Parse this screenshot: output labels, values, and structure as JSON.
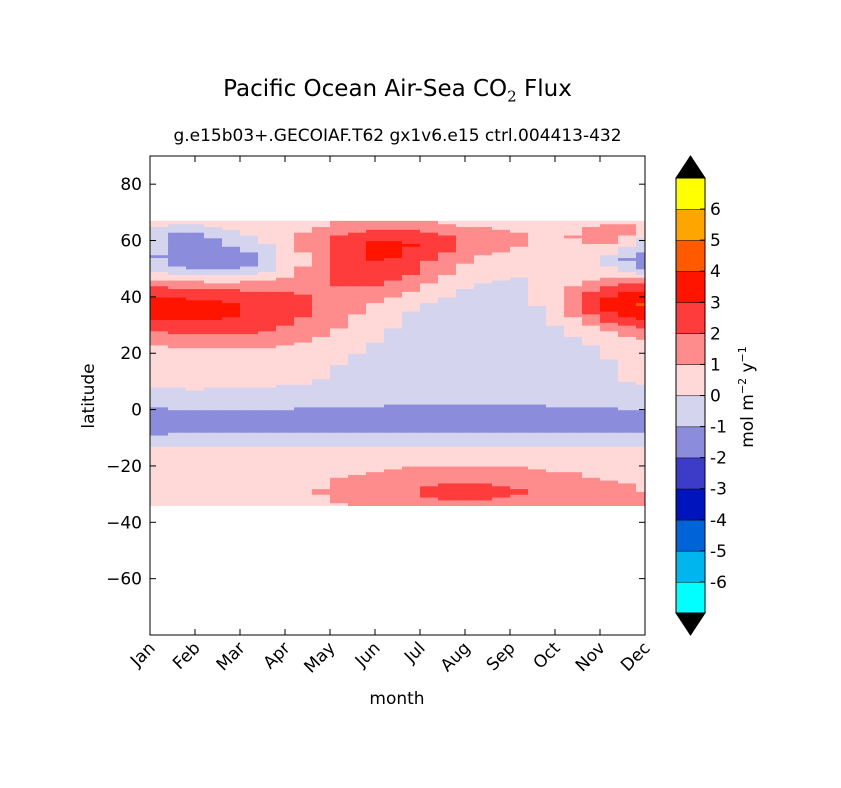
{
  "chart_data": {
    "type": "heatmap",
    "title": "Pacific Ocean Air-Sea CO",
    "title_subscript": "2",
    "title_suffix": " Flux",
    "subtitle": "g.e15b03+.GECOIAF.T62 gx1v6.e15 ctrl.004",
    "subtitle_years": "413-432",
    "xlabel": "month",
    "ylabel": "latitude",
    "x_ticks": [
      "Jan",
      "Feb",
      "Mar",
      "Apr",
      "May",
      "Jun",
      "Jul",
      "Aug",
      "Sep",
      "Oct",
      "Nov",
      "Dec"
    ],
    "y_ticks": [
      80,
      60,
      40,
      20,
      0,
      -20,
      -40,
      -60
    ],
    "y_tick_labels": [
      "80",
      "60",
      "40",
      "20",
      "0",
      "−20",
      "−40",
      "−60"
    ],
    "xlim": [
      1,
      12
    ],
    "ylim": [
      -80,
      90
    ],
    "data_lat_range": [
      -34,
      67
    ],
    "colorbar": {
      "label": "mol m",
      "label_sup1": "−2",
      "label_mid": " y",
      "label_sup2": "−1",
      "levels": [
        -7,
        -6,
        -5,
        -4,
        -3,
        -2,
        -1,
        0,
        1,
        2,
        3,
        4,
        5,
        6,
        7
      ],
      "tick_labels": [
        "-6",
        "-5",
        "-4",
        "-3",
        "-2",
        "-1",
        "0",
        "1",
        "2",
        "3",
        "4",
        "5",
        "6"
      ],
      "colors": [
        "#00ffff",
        "#00b4ee",
        "#0064d8",
        "#0014be",
        "#3c3cc8",
        "#8c8cdc",
        "#d4d4ef",
        "#ffd8d8",
        "#ff8c8c",
        "#ff3c3c",
        "#ff1400",
        "#ff5a00",
        "#ffa500",
        "#ffff00"
      ],
      "extend_colors": [
        "#000000",
        "#000000"
      ]
    }
  }
}
